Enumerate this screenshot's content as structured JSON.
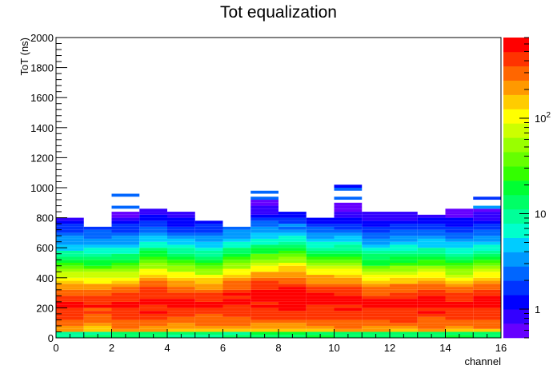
{
  "chart_data": {
    "type": "heatmap",
    "title": "Tot equalization",
    "xlabel": "channel",
    "ylabel": "ToT (ns)",
    "xlim": [
      0,
      16
    ],
    "ylim": [
      0,
      2000
    ],
    "x_ticks": [
      "0",
      "2",
      "4",
      "6",
      "8",
      "10",
      "12",
      "14",
      "16"
    ],
    "y_ticks": [
      "0",
      "200",
      "400",
      "600",
      "800",
      "1000",
      "1200",
      "1400",
      "1600",
      "1800",
      "2000"
    ],
    "z_scale": "log",
    "zlim": [
      0.5,
      700
    ],
    "z_ticks": [
      {
        "value": 1,
        "label": "1",
        "sup": ""
      },
      {
        "value": 10,
        "label": "10",
        "sup": ""
      },
      {
        "value": 100,
        "label": "10",
        "sup": "2"
      }
    ],
    "channels": 16,
    "bin_width_ns": 20,
    "channel_profiles": [
      {
        "channel": 0,
        "peak_ns": 190,
        "width_ns": 110,
        "max_count": 420,
        "max_ns": 800
      },
      {
        "channel": 1,
        "peak_ns": 200,
        "width_ns": 105,
        "max_count": 380,
        "max_ns": 740
      },
      {
        "channel": 2,
        "peak_ns": 190,
        "width_ns": 115,
        "max_count": 430,
        "max_ns": 1000
      },
      {
        "channel": 3,
        "peak_ns": 210,
        "width_ns": 120,
        "max_count": 480,
        "max_ns": 860
      },
      {
        "channel": 4,
        "peak_ns": 200,
        "width_ns": 115,
        "max_count": 440,
        "max_ns": 830
      },
      {
        "channel": 5,
        "peak_ns": 200,
        "width_ns": 110,
        "max_count": 410,
        "max_ns": 780
      },
      {
        "channel": 6,
        "peak_ns": 220,
        "width_ns": 115,
        "max_count": 460,
        "max_ns": 740
      },
      {
        "channel": 7,
        "peak_ns": 230,
        "width_ns": 120,
        "max_count": 500,
        "max_ns": 990
      },
      {
        "channel": 8,
        "peak_ns": 240,
        "width_ns": 120,
        "max_count": 520,
        "max_ns": 840
      },
      {
        "channel": 9,
        "peak_ns": 220,
        "width_ns": 115,
        "max_count": 470,
        "max_ns": 800
      },
      {
        "channel": 10,
        "peak_ns": 210,
        "width_ns": 120,
        "max_count": 480,
        "max_ns": 1040
      },
      {
        "channel": 11,
        "peak_ns": 190,
        "width_ns": 110,
        "max_count": 430,
        "max_ns": 840
      },
      {
        "channel": 12,
        "peak_ns": 200,
        "width_ns": 110,
        "max_count": 440,
        "max_ns": 830
      },
      {
        "channel": 13,
        "peak_ns": 200,
        "width_ns": 115,
        "max_count": 470,
        "max_ns": 810
      },
      {
        "channel": 14,
        "peak_ns": 190,
        "width_ns": 110,
        "max_count": 420,
        "max_ns": 860
      },
      {
        "channel": 15,
        "peak_ns": 200,
        "width_ns": 115,
        "max_count": 440,
        "max_ns": 950
      }
    ],
    "grid": false,
    "palette": [
      "#6600ff",
      "#3300ff",
      "#0000ff",
      "#0033ff",
      "#0066ff",
      "#0099ff",
      "#00ccff",
      "#00ffcc",
      "#00ff99",
      "#00ff66",
      "#00ff33",
      "#33ff00",
      "#66ff00",
      "#99ff00",
      "#ccff00",
      "#ffff00",
      "#ffcc00",
      "#ff9900",
      "#ff6600",
      "#ff3300",
      "#ff0000"
    ]
  }
}
